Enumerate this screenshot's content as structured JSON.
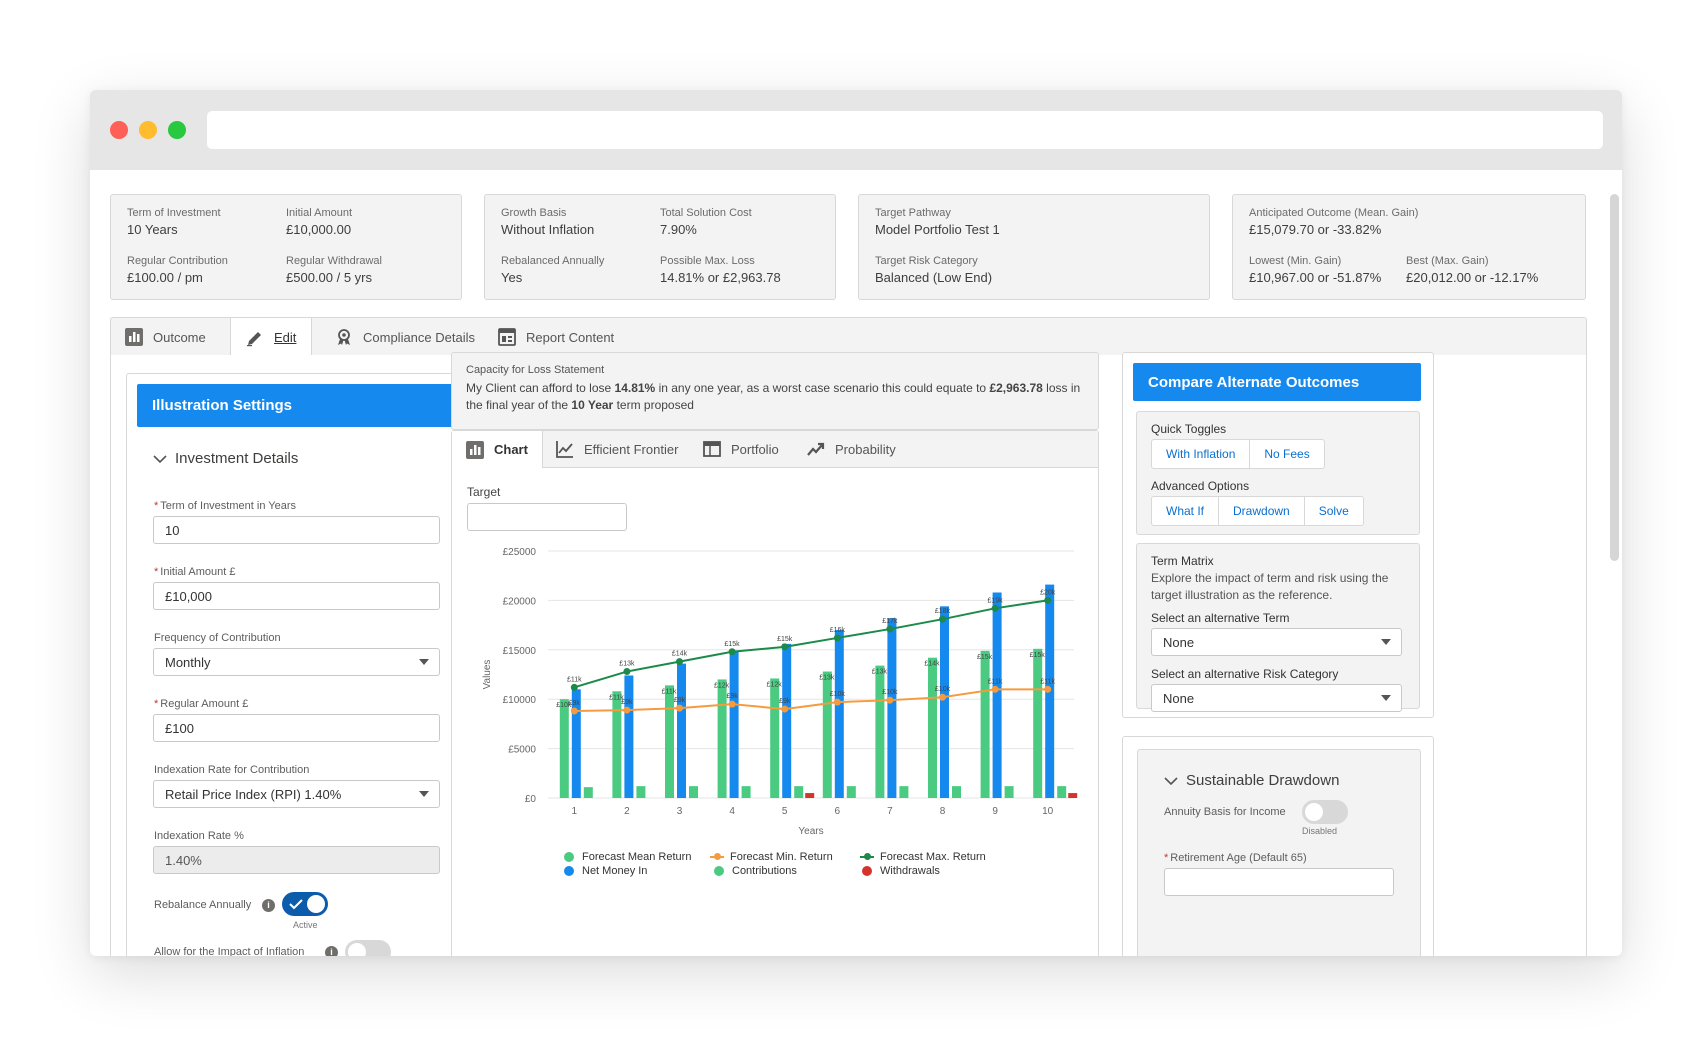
{
  "summary": {
    "term_label": "Term of Investment",
    "term_value": "10 Years",
    "initial_label": "Initial Amount",
    "initial_value": "£10,000.00",
    "regular_contrib_label": "Regular Contribution",
    "regular_contrib_value": "£100.00 / pm",
    "regular_withdrawal_label": "Regular Withdrawal",
    "regular_withdrawal_value": "£500.00 / 5 yrs",
    "growth_label": "Growth Basis",
    "growth_value": "Without Inflation",
    "total_cost_label": "Total Solution Cost",
    "total_cost_value": "7.90%",
    "rebalanced_label": "Rebalanced Annually",
    "rebalanced_value": "Yes",
    "max_loss_label": "Possible Max. Loss",
    "max_loss_value": "14.81% or £2,963.78",
    "pathway_label": "Target Pathway",
    "pathway_value": "Model Portfolio Test 1",
    "risk_label": "Target Risk Category",
    "risk_value": "Balanced (Low End)",
    "anticipated_label": "Anticipated Outcome (Mean. Gain)",
    "anticipated_value": "£15,079.70 or -33.82%",
    "lowest_label": "Lowest (Min. Gain)",
    "lowest_value": "£10,967.00 or -51.87%",
    "best_label": "Best (Max. Gain)",
    "best_value": "£20,012.00 or -12.17%"
  },
  "main_tabs": [
    "Outcome",
    "Edit",
    "Compliance Details",
    "Report Content"
  ],
  "illustration": {
    "header": "Illustration Settings",
    "section": "Investment Details",
    "term_label": "Term of Investment in Years",
    "term_value": "10",
    "initial_label": "Initial Amount £",
    "initial_value": "£10,000",
    "freq_label": "Frequency of Contribution",
    "freq_value": "Monthly",
    "regular_label": "Regular Amount £",
    "regular_value": "£100",
    "index_label": "Indexation Rate for Contribution",
    "index_value": "Retail Price Index (RPI) 1.40%",
    "rate_label": "Indexation Rate %",
    "rate_value": "1.40%",
    "rebalance_label": "Rebalance Annually",
    "rebalance_caption": "Active",
    "inflation_label": "Allow for the Impact of Inflation"
  },
  "capacity": {
    "title": "Capacity for Loss Statement",
    "t1": "My Client can afford to lose ",
    "b1": "14.81%",
    "t2": " in any one year, as a worst case scenario this could equate to ",
    "b2": "£2,963.78",
    "t3": " loss in the final year of the ",
    "b3": "10 Year",
    "t4": " term proposed"
  },
  "chart_tabs": [
    "Chart",
    "Efficient Frontier",
    "Portfolio",
    "Probability"
  ],
  "target_label": "Target",
  "chart_data": {
    "type": "bar",
    "xlabel": "Years",
    "ylabel": "Values",
    "ylim": [
      0,
      25000
    ],
    "yticks": [
      "£0",
      "£5000",
      "£10000",
      "£15000",
      "£20000",
      "£25000"
    ],
    "categories": [
      "1",
      "2",
      "3",
      "4",
      "5",
      "6",
      "7",
      "8",
      "9",
      "10"
    ],
    "series": [
      {
        "name": "Forecast Mean Return",
        "kind": "bar",
        "color": "#4bca81",
        "values": [
          10000,
          10800,
          11400,
          12000,
          12100,
          12800,
          13400,
          14200,
          14900,
          15100
        ],
        "labels": [
          "£10k",
          "£11k",
          "£11k",
          "£12k",
          "£12k",
          "£13k",
          "£13k",
          "£14k",
          "£15k",
          "£15k"
        ]
      },
      {
        "name": "Net Money In",
        "kind": "bar",
        "color": "#1589ee",
        "values": [
          11000,
          12400,
          13600,
          14900,
          15600,
          17000,
          18200,
          19400,
          20800,
          21600
        ],
        "labels": [
          "",
          "",
          "",
          "",
          "",
          "",
          "",
          "",
          "",
          ""
        ]
      },
      {
        "name": "Contributions",
        "kind": "bar",
        "color": "#4bca81",
        "values": [
          1100,
          1200,
          1200,
          1200,
          1200,
          1200,
          1200,
          1200,
          1200,
          1200
        ],
        "labels": [
          "",
          "",
          "",
          "",
          "",
          "",
          "",
          "",
          "",
          ""
        ]
      },
      {
        "name": "Withdrawals",
        "kind": "bar",
        "color": "#d4342c",
        "values": [
          0,
          0,
          0,
          0,
          500,
          0,
          0,
          0,
          0,
          500
        ],
        "labels": [
          "",
          "",
          "",
          "",
          "",
          "",
          "",
          "",
          "",
          ""
        ]
      },
      {
        "name": "Forecast Min. Return",
        "kind": "line",
        "color": "#f59b3d",
        "values": [
          8800,
          8900,
          9100,
          9500,
          9000,
          9700,
          9900,
          10200,
          11000,
          11000
        ],
        "labels": [
          "£9k",
          "£9k",
          "£9k",
          "£9k",
          "£9k",
          "£10k",
          "£10k",
          "£10k",
          "£11k",
          "£11k"
        ]
      },
      {
        "name": "Forecast Max. Return",
        "kind": "line",
        "color": "#1b8a4a",
        "values": [
          11200,
          12800,
          13800,
          14800,
          15300,
          16200,
          17100,
          18100,
          19200,
          20000
        ],
        "labels": [
          "£11k",
          "£13k",
          "£14k",
          "£15k",
          "£15k",
          "£16k",
          "£17k",
          "£18k",
          "£19k",
          "£20k"
        ]
      }
    ]
  },
  "legend": [
    "Forecast Mean Return",
    "Forecast Min. Return",
    "Forecast Max. Return",
    "Net Money In",
    "Contributions",
    "Withdrawals"
  ],
  "compare": {
    "header": "Compare Alternate Outcomes",
    "quick_label": "Quick Toggles",
    "quick": [
      "With Inflation",
      "No Fees"
    ],
    "advanced_label": "Advanced Options",
    "advanced": [
      "What If",
      "Drawdown",
      "Solve"
    ],
    "matrix_title": "Term Matrix",
    "matrix_desc1": "Explore the impact of term and risk using the",
    "matrix_desc2": "target illustration as the reference.",
    "alt_term_label": "Select an alternative Term",
    "alt_term_value": "None",
    "alt_risk_label": "Select an alternative Risk Category",
    "alt_risk_value": "None"
  },
  "drawdown": {
    "title": "Sustainable Drawdown",
    "annuity_label": "Annuity Basis for Income",
    "annuity_caption": "Disabled",
    "retire_label": "Retirement Age (Default 65)"
  }
}
